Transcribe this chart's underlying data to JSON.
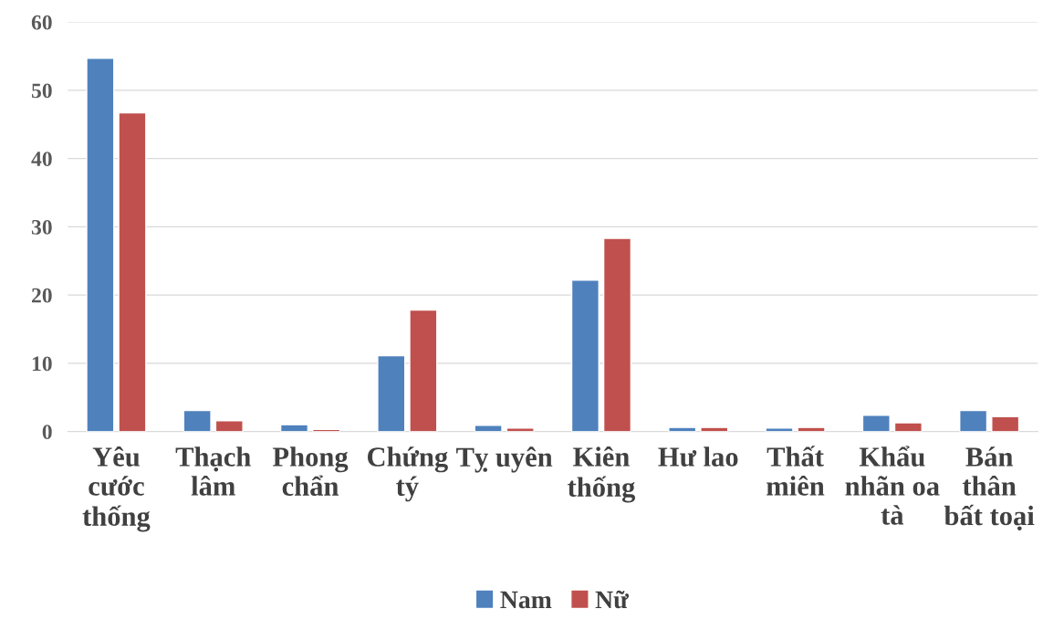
{
  "chart_data": {
    "type": "bar",
    "categories": [
      "Yêu\ncước\nthống",
      "Thạch\nlâm",
      "Phong\nchẩn",
      "Chứng\ntý",
      "Tỵ uyên",
      "Kiên\nthống",
      "Hư lao",
      "Thất\nmiên",
      "Khẩu\nnhãn oa\ntà",
      "Bán\nthân\nbất toại"
    ],
    "series": [
      {
        "name": "Nam",
        "color": "#4f81bd",
        "values": [
          54.7,
          3.1,
          1.0,
          11.1,
          0.9,
          22.2,
          0.6,
          0.5,
          2.4,
          3.1
        ]
      },
      {
        "name": "Nữ",
        "color": "#c0504d",
        "values": [
          46.7,
          1.6,
          0.3,
          17.8,
          0.5,
          28.3,
          0.6,
          0.6,
          1.3,
          2.2
        ]
      }
    ],
    "ylim": [
      0,
      60
    ],
    "yticks": [
      0,
      10,
      20,
      30,
      40,
      50,
      60
    ],
    "grid": "y",
    "legend": "bottom"
  }
}
